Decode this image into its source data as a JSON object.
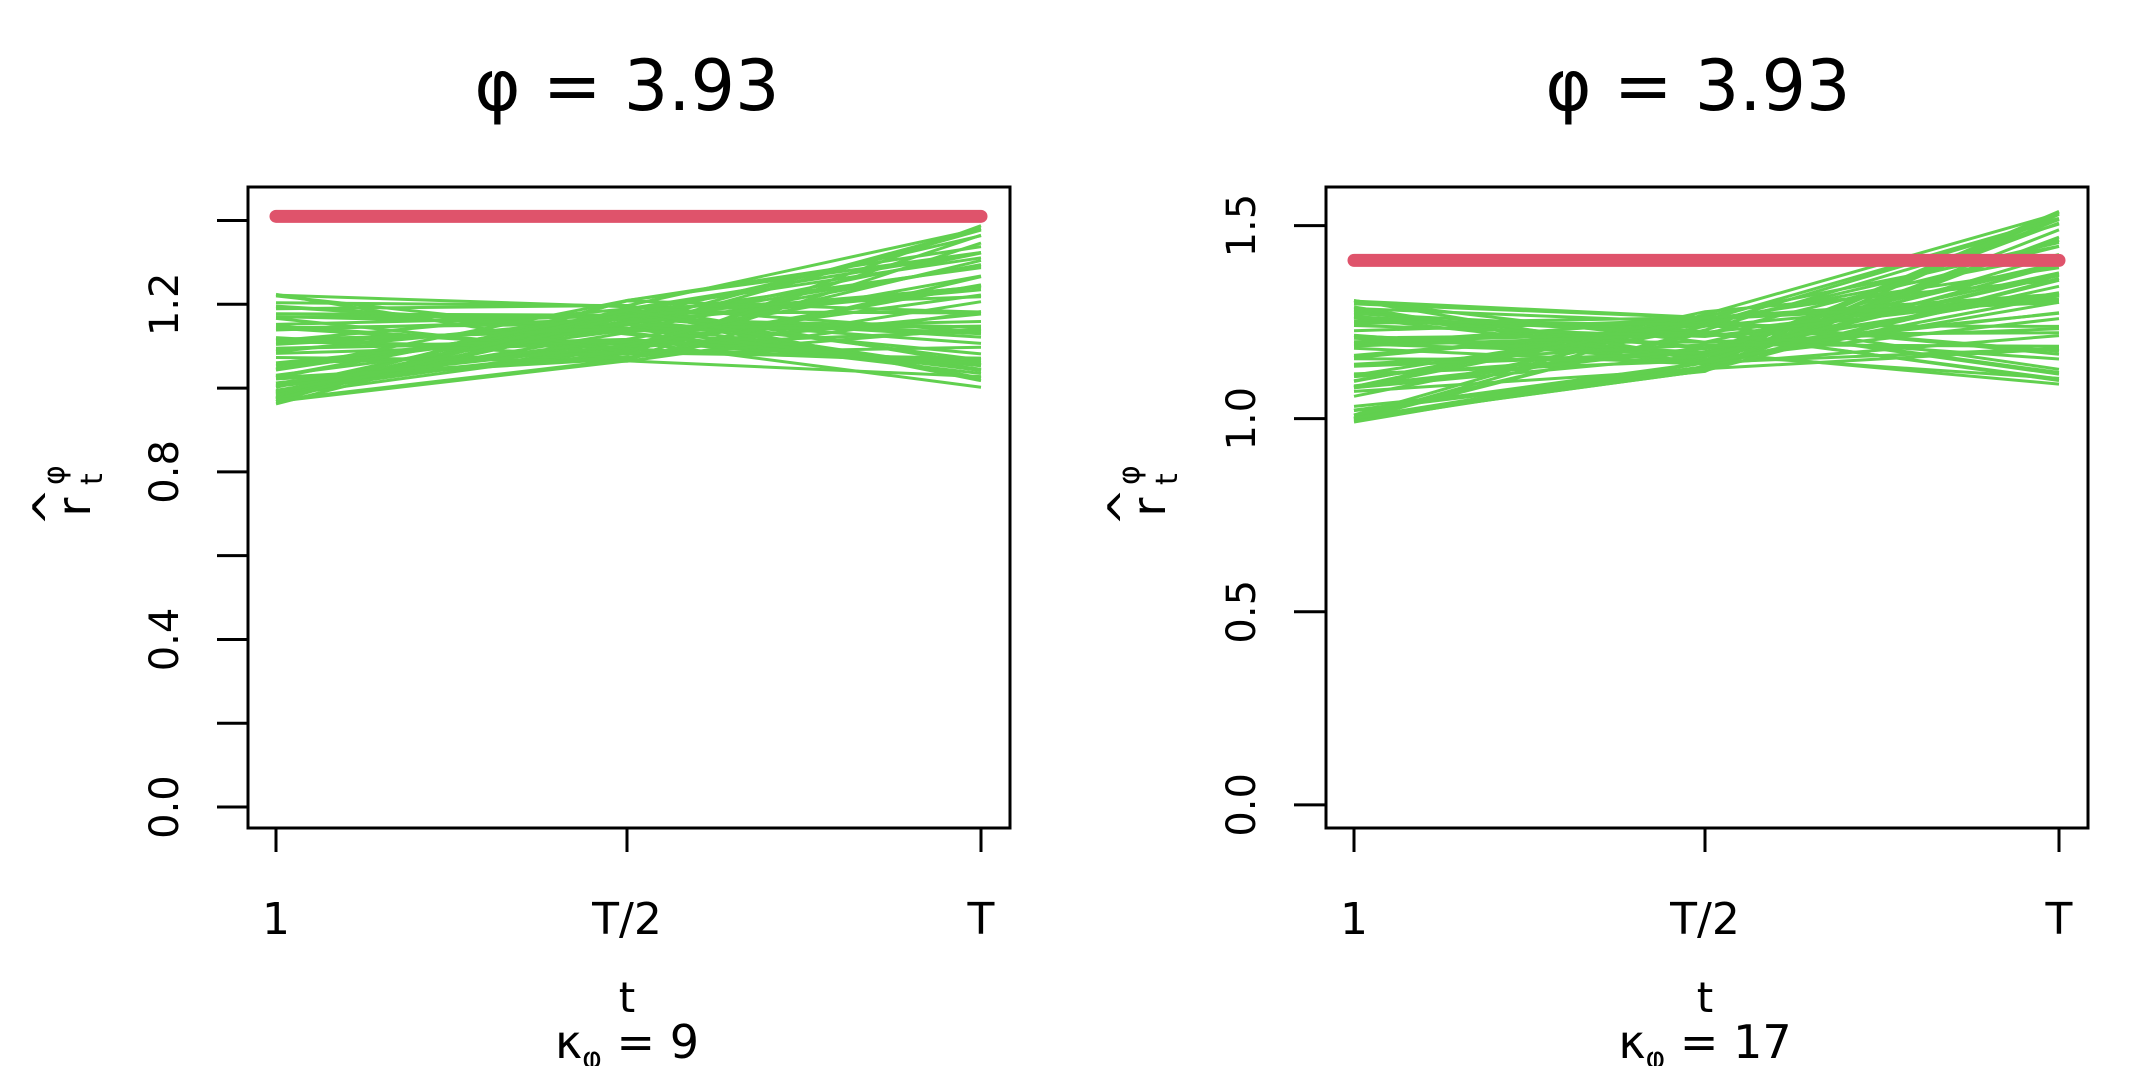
{
  "colors": {
    "truth": "#DF536B",
    "estimates": "#61D04F",
    "axis": "#000000"
  },
  "chart_data": [
    {
      "type": "line",
      "title": "φ = 3.93",
      "xlabel": "t",
      "ylabel": {
        "base": "r",
        "hat": "^",
        "sup": "φ",
        "sub": "t"
      },
      "x_tick_labels": [
        "1",
        "T/2",
        "T"
      ],
      "y_ticks": [
        0.0,
        0.2,
        0.4,
        0.6,
        0.8,
        1.0,
        1.2,
        1.4
      ],
      "y_tick_labels": [
        "0.0",
        "0.4",
        "0.8",
        "1.2"
      ],
      "ylim": [
        -0.05,
        1.48
      ],
      "true_value": 1.41,
      "estimate_band": {
        "start_range": [
          0.96,
          1.24
        ],
        "mid_range": [
          1.06,
          1.21
        ],
        "end_range": [
          1.0,
          1.39
        ]
      },
      "n_estimate_lines": 60,
      "annotation": {
        "base": "κ",
        "sub": "φ",
        "text": " = 9"
      }
    },
    {
      "type": "line",
      "title": "φ = 3.93",
      "xlabel": "t",
      "ylabel": {
        "base": "r",
        "hat": "^",
        "sup": "φ",
        "sub": "t"
      },
      "x_tick_labels": [
        "1",
        "T/2",
        "T"
      ],
      "y_ticks": [
        0.0,
        0.5,
        1.0,
        1.5
      ],
      "y_tick_labels": [
        "0.0",
        "0.5",
        "1.0",
        "1.5"
      ],
      "ylim": [
        -0.06,
        1.6
      ],
      "true_value": 1.41,
      "estimate_band": {
        "start_range": [
          0.99,
          1.32
        ],
        "mid_range": [
          1.12,
          1.28
        ],
        "end_range": [
          1.07,
          1.54
        ]
      },
      "n_estimate_lines": 60,
      "annotation": {
        "base": "κ",
        "sub": "φ",
        "text": " = 17"
      }
    }
  ]
}
